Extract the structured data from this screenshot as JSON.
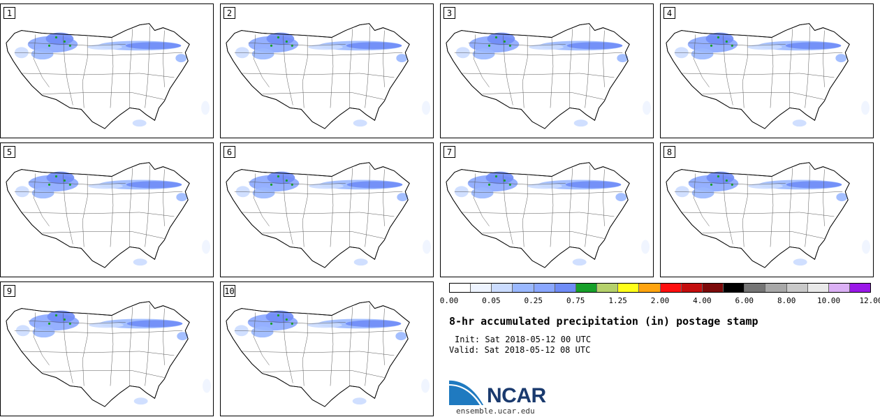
{
  "panels": [
    {
      "label": "1"
    },
    {
      "label": "2"
    },
    {
      "label": "3"
    },
    {
      "label": "4"
    },
    {
      "label": "5"
    },
    {
      "label": "6"
    },
    {
      "label": "7"
    },
    {
      "label": "8"
    },
    {
      "label": "9"
    },
    {
      "label": "10"
    }
  ],
  "colorbar": {
    "colors": [
      "#ffffff",
      "#eef4ff",
      "#cbdcff",
      "#9ab8ff",
      "#8aa7ff",
      "#6f8cf7",
      "#17a02a",
      "#b5d16b",
      "#ffff1a",
      "#ffa40f",
      "#ff0f0f",
      "#c40e0e",
      "#7c0a0a",
      "#000000",
      "#757575",
      "#a8a8a8",
      "#c9c9c9",
      "#e9e9e9",
      "#dbb0f5",
      "#9a18e8"
    ],
    "tick_labels": [
      "0.00",
      "0.05",
      "0.25",
      "0.75",
      "1.25",
      "2.00",
      "4.00",
      "6.00",
      "8.00",
      "10.00",
      "12.00"
    ]
  },
  "title": "8-hr accumulated precipitation (in) postage stamp",
  "init": "Init: Sat 2018-05-12 00 UTC",
  "valid": "Valid: Sat 2018-05-12 08 UTC",
  "logo": {
    "text": "NCAR",
    "site": "ensemble.ucar.edu"
  }
}
